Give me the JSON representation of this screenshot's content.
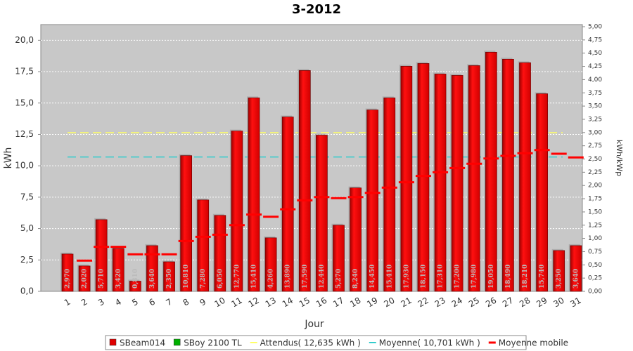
{
  "chart_data": {
    "type": "bar",
    "title": "3-2012",
    "x_label": "Jour",
    "y_label": "kWh",
    "y2_label": "kWh/kWp",
    "categories": [
      "1",
      "2",
      "3",
      "4",
      "5",
      "6",
      "7",
      "8",
      "9",
      "10",
      "11",
      "12",
      "13",
      "14",
      "15",
      "16",
      "17",
      "18",
      "19",
      "20",
      "21",
      "22",
      "23",
      "24",
      "25",
      "26",
      "27",
      "28",
      "29",
      "30",
      "31"
    ],
    "series": [
      {
        "name": "SBeam014",
        "color": "#e00000",
        "values": [
          2.97,
          2.02,
          5.71,
          3.42,
          0.81,
          3.64,
          2.35,
          10.81,
          7.28,
          6.05,
          12.77,
          15.41,
          4.26,
          13.89,
          17.59,
          12.44,
          5.27,
          8.24,
          14.45,
          15.41,
          17.93,
          18.15,
          17.31,
          17.2,
          17.98,
          19.05,
          18.49,
          18.21,
          15.74,
          3.25,
          3.64
        ],
        "value_labels": [
          "2,970",
          "2,020",
          "5,710",
          "3,420",
          "0,810",
          "3,640",
          "2,350",
          "10,810",
          "7,280",
          "6,050",
          "12,770",
          "15,410",
          "4,260",
          "13,890",
          "17,590",
          "12,440",
          "5,270",
          "8,240",
          "14,450",
          "15,410",
          "17,930",
          "18,150",
          "17,310",
          "17,200",
          "17,980",
          "19,050",
          "18,490",
          "18,210",
          "15,740",
          "3,250",
          "3,640"
        ]
      },
      {
        "name": "SBoy 2100 TL",
        "color": "#00b000"
      },
      {
        "name": "Moyenne mobile",
        "color": "#ff0000",
        "axis": "y2",
        "values": [
          null,
          0.58,
          0.84,
          0.84,
          0.7,
          0.7,
          0.7,
          0.95,
          1.03,
          1.07,
          1.25,
          1.45,
          1.41,
          1.55,
          1.72,
          1.78,
          1.76,
          1.78,
          1.86,
          1.96,
          2.06,
          2.18,
          2.25,
          2.33,
          2.41,
          2.51,
          2.56,
          2.61,
          2.67,
          2.6,
          2.53
        ]
      }
    ],
    "reference_lines": [
      {
        "name": "Attendus( 12,635 kWh )",
        "value": 12.635,
        "color": "#ffff66"
      },
      {
        "name": "Moyenne( 10,701 kWh )",
        "value": 10.701,
        "color": "#33cccc"
      }
    ],
    "ylim": [
      0,
      21.25
    ],
    "yticks": [
      {
        "value": 0,
        "label": "0,0"
      },
      {
        "value": 2.5,
        "label": "2,5"
      },
      {
        "value": 5,
        "label": "5,0"
      },
      {
        "value": 7.5,
        "label": "7,5"
      },
      {
        "value": 10,
        "label": "10,0"
      },
      {
        "value": 12.5,
        "label": "12,5"
      },
      {
        "value": 15,
        "label": "15,0"
      },
      {
        "value": 17.5,
        "label": "17,5"
      },
      {
        "value": 20,
        "label": "20,0"
      }
    ],
    "y2lim": [
      0,
      5.04
    ],
    "y2ticks": [
      {
        "value": 0,
        "label": "0,00"
      },
      {
        "value": 0.25,
        "label": "0,25"
      },
      {
        "value": 0.5,
        "label": "0,50"
      },
      {
        "value": 0.75,
        "label": "0,75"
      },
      {
        "value": 1,
        "label": "1,00"
      },
      {
        "value": 1.25,
        "label": "1,25"
      },
      {
        "value": 1.5,
        "label": "1,50"
      },
      {
        "value": 1.75,
        "label": "1,75"
      },
      {
        "value": 2,
        "label": "2,00"
      },
      {
        "value": 2.25,
        "label": "2,25"
      },
      {
        "value": 2.5,
        "label": "2,50"
      },
      {
        "value": 2.75,
        "label": "2,75"
      },
      {
        "value": 3,
        "label": "3,00"
      },
      {
        "value": 3.25,
        "label": "3,25"
      },
      {
        "value": 3.5,
        "label": "3,50"
      },
      {
        "value": 3.75,
        "label": "3,75"
      },
      {
        "value": 4,
        "label": "4,00"
      },
      {
        "value": 4.25,
        "label": "4,25"
      },
      {
        "value": 4.5,
        "label": "4,50"
      },
      {
        "value": 4.75,
        "label": "4,75"
      },
      {
        "value": 5,
        "label": "5,00"
      }
    ],
    "grid": true,
    "legend": "bottom"
  }
}
